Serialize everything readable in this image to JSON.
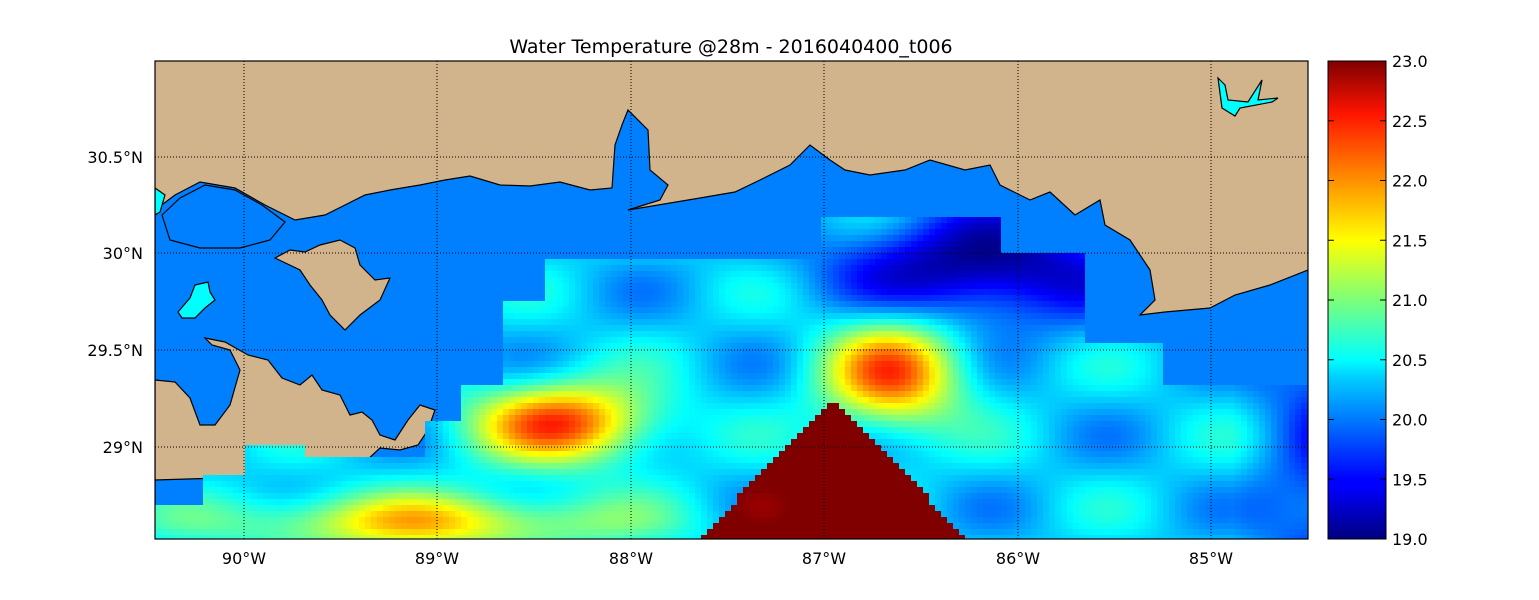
{
  "chart_data": {
    "type": "heatmap",
    "title": "Water Temperature @28m - 2016040400_t006",
    "x_ticks": [
      "90°W",
      "89°W",
      "88°W",
      "87°W",
      "86°W",
      "85°W"
    ],
    "y_ticks": [
      "30.5°N",
      "30°N",
      "29.5°N",
      "29°N"
    ],
    "xlim": [
      -90.47,
      -84.5
    ],
    "ylim": [
      28.53,
      31.0
    ],
    "grid": true,
    "colormap": "jet",
    "colorbar": {
      "range": [
        19.0,
        23.0
      ],
      "ticks": [
        "23.0",
        "22.5",
        "22.0",
        "21.5",
        "21.0",
        "20.5",
        "20.0",
        "19.5",
        "19.0"
      ]
    },
    "colors": {
      "land": "#d2b48c",
      "coast_water": "#0080ff",
      "lakes": "#00ffff",
      "coastline": "#000000"
    }
  }
}
